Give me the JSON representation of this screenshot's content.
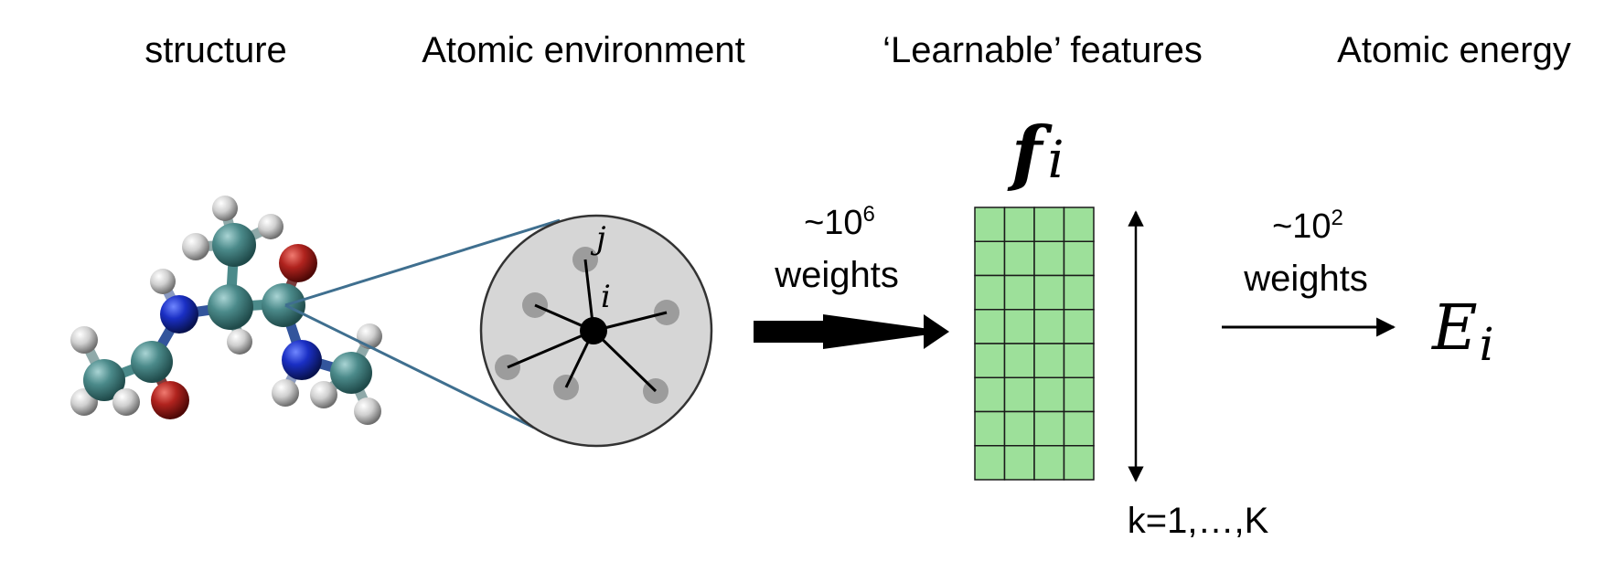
{
  "headers": {
    "structure": "structure",
    "environment": "Atomic environment",
    "features": "‘Learnable’ features",
    "energy": "Atomic energy"
  },
  "environment": {
    "label_i": "i",
    "label_j": "j"
  },
  "network1": {
    "prefix": "~10",
    "exponent": "6",
    "label": "weights"
  },
  "features": {
    "symbol": "f",
    "subscript": "i",
    "rows": 8,
    "cols": 4,
    "fill_color": "#9de09a",
    "range_label": "k=1,…,K"
  },
  "network2": {
    "prefix": "~10",
    "exponent": "2",
    "label": "weights"
  },
  "output": {
    "symbol": "E",
    "subscript": "i"
  },
  "colors": {
    "carbon": "#4b8a8a",
    "nitrogen": "#1a2fc4",
    "oxygen": "#b0231e",
    "hydrogen": "#cfcfcf",
    "zoom_lines": "#3f6f8f",
    "environment_disk": "#d6d6d6"
  }
}
